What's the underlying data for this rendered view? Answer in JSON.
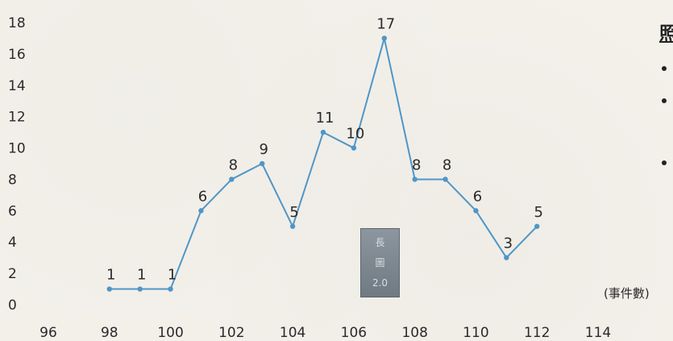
{
  "chart_data": {
    "type": "line",
    "title": "",
    "xlabel": "",
    "ylabel": "(事件數)",
    "xlim": [
      96,
      114
    ],
    "ylim": [
      0,
      18
    ],
    "x_ticks": [
      96,
      98,
      100,
      102,
      104,
      106,
      108,
      110,
      112,
      114
    ],
    "y_ticks": [
      0,
      2,
      4,
      6,
      8,
      10,
      12,
      14,
      16,
      18
    ],
    "grid": false,
    "series": [
      {
        "x": [
          98,
          99,
          100,
          101,
          102,
          103,
          104,
          105,
          106,
          107,
          108,
          109,
          110,
          111,
          112
        ],
        "values": [
          1,
          1,
          1,
          6,
          8,
          9,
          5,
          11,
          10,
          17,
          8,
          8,
          6,
          3,
          5
        ],
        "color": "#4f96c7"
      }
    ]
  },
  "unit_label": "(事件數)",
  "stamp": {
    "line1": "長",
    "line2": "圖",
    "line3": "2.0"
  },
  "legend_fragment": {
    "title": "照"
  }
}
